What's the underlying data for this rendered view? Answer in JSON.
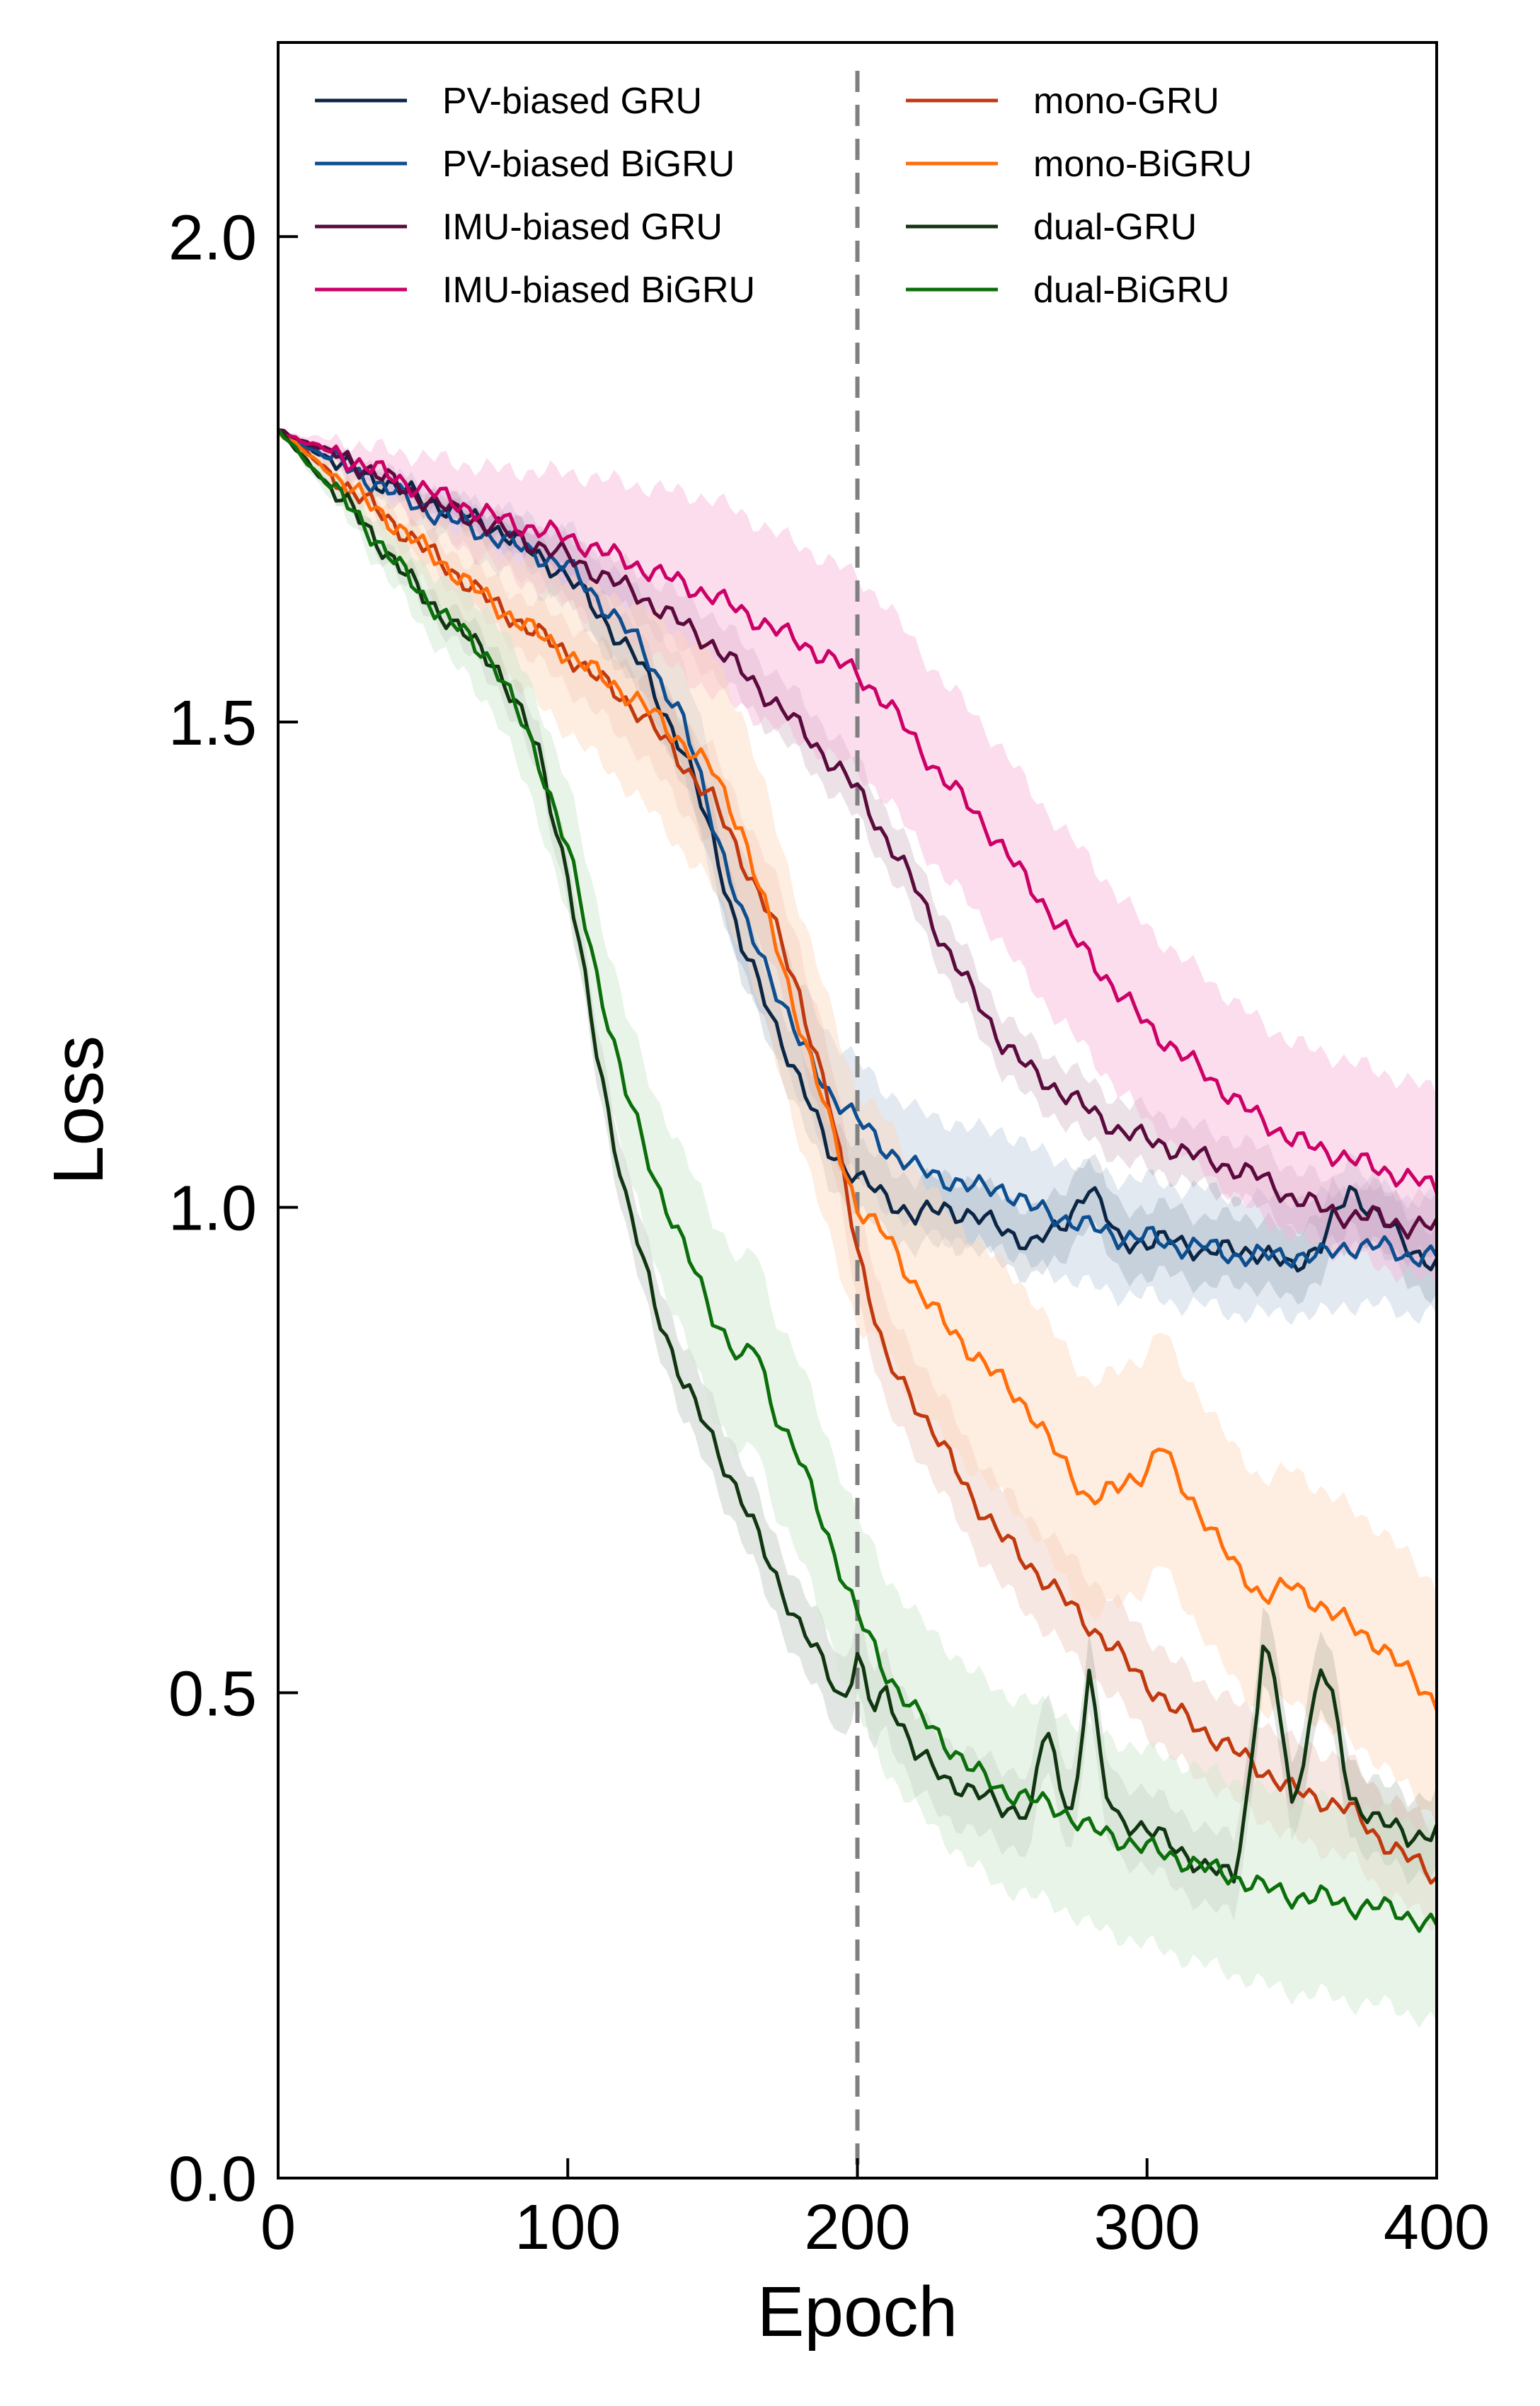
{
  "chart_data": {
    "type": "line",
    "xlabel": "Epoch",
    "ylabel": "Loss",
    "xlim": [
      0,
      400
    ],
    "ylim": [
      0,
      2.2
    ],
    "xticks": [
      "0",
      "100",
      "200",
      "300",
      "400"
    ],
    "yticks": [
      "0.0",
      "0.5",
      "1.0",
      "1.5",
      "2.0"
    ],
    "vline_x": 200,
    "grid": false,
    "legend_position": "top",
    "series": [
      {
        "name": "PV-biased GRU",
        "color": "#0b2545",
        "band": 0.035,
        "x": [
          0,
          25,
          50,
          75,
          100,
          125,
          140,
          150,
          160,
          170,
          180,
          190,
          200,
          210,
          220,
          230,
          240,
          250,
          260,
          270,
          280,
          290,
          300,
          310,
          320,
          330,
          340,
          350,
          360,
          370,
          380,
          390,
          400
        ],
        "y": [
          1.8,
          1.76,
          1.73,
          1.7,
          1.65,
          1.56,
          1.47,
          1.38,
          1.27,
          1.2,
          1.13,
          1.06,
          1.03,
          1.01,
          0.99,
          1.0,
          0.99,
          0.98,
          0.96,
          0.98,
          1.02,
          0.97,
          0.96,
          0.97,
          0.95,
          0.96,
          0.95,
          0.94,
          0.96,
          1.02,
          0.99,
          0.96,
          0.94
        ]
      },
      {
        "name": "PV-biased BiGRU",
        "color": "#0d4e8f",
        "band": 0.06,
        "x": [
          0,
          25,
          50,
          75,
          100,
          125,
          140,
          150,
          160,
          170,
          180,
          190,
          200,
          210,
          220,
          230,
          240,
          250,
          260,
          270,
          280,
          290,
          300,
          310,
          320,
          330,
          340,
          350,
          360,
          370,
          380,
          390,
          400
        ],
        "y": [
          1.8,
          1.76,
          1.72,
          1.69,
          1.66,
          1.58,
          1.5,
          1.4,
          1.3,
          1.24,
          1.17,
          1.12,
          1.09,
          1.06,
          1.04,
          1.03,
          1.02,
          1.02,
          1.0,
          0.99,
          0.98,
          0.97,
          0.97,
          0.96,
          0.96,
          0.95,
          0.95,
          0.95,
          0.95,
          0.96,
          0.96,
          0.95,
          0.95
        ]
      },
      {
        "name": "IMU-biased GRU",
        "color": "#5a0a3c",
        "band": 0.03,
        "x": [
          0,
          25,
          50,
          75,
          100,
          125,
          150,
          175,
          200,
          210,
          220,
          230,
          240,
          250,
          260,
          270,
          280,
          290,
          300,
          310,
          320,
          330,
          340,
          350,
          360,
          370,
          380,
          390,
          400
        ],
        "y": [
          1.8,
          1.77,
          1.73,
          1.7,
          1.67,
          1.63,
          1.58,
          1.51,
          1.43,
          1.38,
          1.33,
          1.27,
          1.22,
          1.17,
          1.14,
          1.12,
          1.1,
          1.08,
          1.07,
          1.06,
          1.05,
          1.04,
          1.03,
          1.01,
          1.0,
          0.99,
          0.99,
          0.98,
          0.98
        ]
      },
      {
        "name": "IMU-biased BiGRU",
        "color": "#cc0066",
        "band": 0.1,
        "band_color": "#f7b3d9",
        "x": [
          0,
          25,
          50,
          75,
          100,
          125,
          150,
          175,
          200,
          210,
          220,
          230,
          240,
          250,
          260,
          270,
          280,
          290,
          300,
          310,
          320,
          330,
          340,
          350,
          360,
          370,
          380,
          390,
          400
        ],
        "y": [
          1.8,
          1.77,
          1.74,
          1.71,
          1.69,
          1.66,
          1.63,
          1.59,
          1.55,
          1.52,
          1.48,
          1.44,
          1.41,
          1.37,
          1.33,
          1.29,
          1.26,
          1.22,
          1.19,
          1.16,
          1.14,
          1.11,
          1.09,
          1.07,
          1.06,
          1.05,
          1.04,
          1.03,
          1.02
        ]
      },
      {
        "name": "mono-GRU",
        "color": "#c0390e",
        "band": 0.05,
        "x": [
          0,
          25,
          50,
          75,
          100,
          125,
          150,
          170,
          180,
          190,
          200,
          210,
          220,
          230,
          240,
          250,
          260,
          270,
          280,
          290,
          300,
          310,
          320,
          330,
          340,
          350,
          360,
          370,
          380,
          390,
          400
        ],
        "y": [
          1.8,
          1.74,
          1.68,
          1.62,
          1.57,
          1.51,
          1.42,
          1.3,
          1.22,
          1.11,
          0.96,
          0.84,
          0.8,
          0.75,
          0.7,
          0.66,
          0.63,
          0.6,
          0.57,
          0.54,
          0.51,
          0.48,
          0.46,
          0.44,
          0.42,
          0.4,
          0.39,
          0.38,
          0.35,
          0.33,
          0.31
        ]
      },
      {
        "name": "mono-BiGRU",
        "color": "#ff6e0a",
        "band": 0.12,
        "band_color": "#fdd8bc",
        "x": [
          0,
          25,
          50,
          75,
          100,
          125,
          150,
          160,
          170,
          180,
          190,
          200,
          210,
          220,
          230,
          240,
          250,
          260,
          270,
          280,
          290,
          300,
          305,
          310,
          320,
          330,
          340,
          350,
          360,
          370,
          380,
          390,
          400
        ],
        "y": [
          1.8,
          1.74,
          1.68,
          1.62,
          1.57,
          1.52,
          1.45,
          1.39,
          1.29,
          1.19,
          1.09,
          1.0,
          0.97,
          0.92,
          0.88,
          0.85,
          0.82,
          0.79,
          0.74,
          0.7,
          0.71,
          0.73,
          0.76,
          0.72,
          0.68,
          0.63,
          0.6,
          0.61,
          0.59,
          0.57,
          0.55,
          0.52,
          0.49
        ]
      },
      {
        "name": "dual-GRU",
        "color": "#103510",
        "band": 0.04,
        "x": [
          0,
          25,
          50,
          75,
          90,
          100,
          110,
          120,
          130,
          140,
          150,
          160,
          170,
          180,
          190,
          195,
          200,
          205,
          210,
          220,
          230,
          240,
          250,
          260,
          265,
          270,
          275,
          280,
          285,
          290,
          300,
          310,
          320,
          330,
          335,
          340,
          345,
          350,
          355,
          360,
          365,
          370,
          380,
          390,
          400
        ],
        "y": [
          1.8,
          1.72,
          1.63,
          1.56,
          1.47,
          1.34,
          1.16,
          1.01,
          0.9,
          0.82,
          0.76,
          0.7,
          0.63,
          0.57,
          0.52,
          0.49,
          0.54,
          0.48,
          0.5,
          0.44,
          0.41,
          0.4,
          0.38,
          0.38,
          0.47,
          0.4,
          0.38,
          0.53,
          0.4,
          0.37,
          0.36,
          0.34,
          0.32,
          0.31,
          0.4,
          0.55,
          0.5,
          0.38,
          0.45,
          0.53,
          0.48,
          0.39,
          0.37,
          0.35,
          0.36
        ]
      },
      {
        "name": "dual-BiGRU",
        "color": "#0b6e0b",
        "band": 0.1,
        "band_color": "#cfe7cf",
        "x": [
          0,
          25,
          50,
          75,
          90,
          100,
          110,
          120,
          130,
          140,
          150,
          160,
          165,
          170,
          180,
          190,
          200,
          205,
          210,
          220,
          230,
          240,
          250,
          260,
          270,
          280,
          290,
          300,
          310,
          320,
          330,
          340,
          350,
          360,
          370,
          380,
          390,
          400
        ],
        "y": [
          1.8,
          1.72,
          1.63,
          1.56,
          1.46,
          1.37,
          1.24,
          1.12,
          1.03,
          0.96,
          0.89,
          0.84,
          0.86,
          0.8,
          0.74,
          0.66,
          0.58,
          0.55,
          0.52,
          0.48,
          0.45,
          0.42,
          0.4,
          0.39,
          0.38,
          0.36,
          0.35,
          0.34,
          0.33,
          0.32,
          0.31,
          0.3,
          0.29,
          0.29,
          0.28,
          0.28,
          0.27,
          0.26
        ]
      }
    ]
  }
}
